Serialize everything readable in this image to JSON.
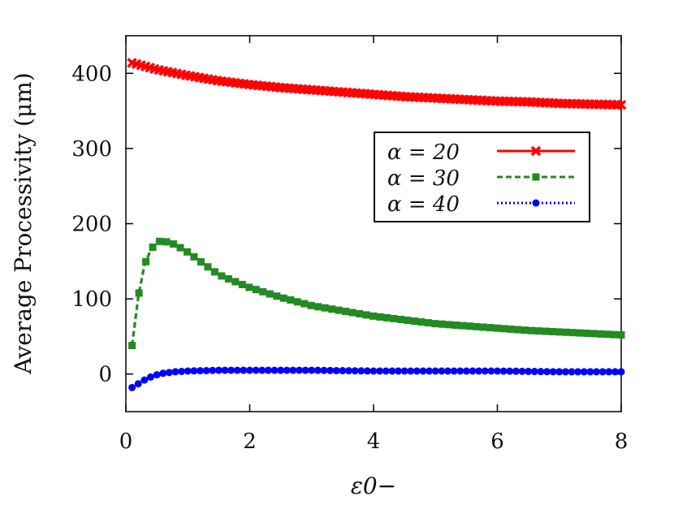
{
  "chart_data": {
    "type": "line",
    "xlabel": "ε0−",
    "ylabel": "Average Processivity (μm)",
    "xlim": [
      0,
      8
    ],
    "ylim": [
      -50,
      450
    ],
    "x_ticks": [
      "0",
      "2",
      "4",
      "6",
      "8"
    ],
    "y_ticks": [
      "0",
      "100",
      "200",
      "300",
      "400"
    ],
    "grid": false,
    "legend_position": "right, middle",
    "series": [
      {
        "name": "α = 20",
        "color": "#ff0000",
        "line_style": "solid",
        "marker": "cross",
        "x": [
          0.1,
          0.5,
          1.0,
          1.5,
          2.0,
          2.5,
          3.0,
          3.5,
          4.0,
          4.5,
          5.0,
          5.5,
          6.0,
          6.5,
          7.0,
          7.5,
          8.0
        ],
        "values": [
          414,
          405,
          397,
          390,
          385,
          381,
          378,
          375,
          372,
          369,
          367,
          365,
          363,
          362,
          360,
          359,
          358
        ]
      },
      {
        "name": "α = 30",
        "color": "#228b22",
        "line_style": "dashed",
        "marker": "square",
        "x": [
          0.1,
          0.2,
          0.3,
          0.4,
          0.5,
          0.6,
          0.7,
          0.8,
          1.0,
          1.2,
          1.5,
          2.0,
          2.5,
          3.0,
          3.5,
          4.0,
          4.5,
          5.0,
          5.5,
          6.0,
          6.5,
          7.0,
          7.5,
          8.0
        ],
        "values": [
          38,
          103,
          145,
          165,
          176,
          177,
          175,
          172,
          162,
          150,
          132,
          115,
          102,
          91,
          84,
          77,
          72,
          67,
          64,
          61,
          58,
          56,
          54,
          52
        ]
      },
      {
        "name": "α = 40",
        "color": "#0000ff",
        "line_style": "dotted",
        "marker": "circle",
        "x": [
          0.1,
          0.2,
          0.3,
          0.4,
          0.5,
          0.6,
          0.8,
          1.0,
          1.5,
          2.0,
          3.0,
          4.0,
          5.0,
          6.0,
          7.0,
          8.0
        ],
        "values": [
          -18,
          -13,
          -8,
          -4,
          -1,
          1,
          3,
          4,
          5,
          5,
          5,
          4,
          4,
          4,
          3,
          3
        ]
      }
    ]
  }
}
